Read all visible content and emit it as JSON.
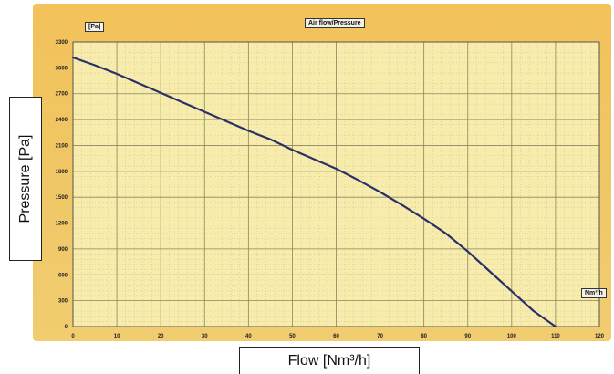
{
  "colors": {
    "frame": "#f1c563",
    "plot_bg": "#f7ecac",
    "grid": "#8c8560",
    "curve": "#2a3168"
  },
  "chart_data": {
    "type": "line",
    "title": "Air flow/Pressure",
    "xlabel": "Flow [Nm³/h]",
    "ylabel": "Pressure [Pa]",
    "x_unit_tag": "Nm³/h",
    "y_unit_tag": "[Pa]",
    "xlim": [
      0,
      120
    ],
    "ylim": [
      0,
      3300
    ],
    "x_ticks": [
      "0",
      "10",
      "20",
      "30",
      "40",
      "50",
      "60",
      "70",
      "80",
      "90",
      "100",
      "110",
      "120"
    ],
    "y_ticks": [
      "0",
      "300",
      "600",
      "900",
      "1200",
      "1500",
      "1800",
      "2100",
      "2400",
      "2700",
      "3000",
      "3300"
    ],
    "grid": true,
    "series": [
      {
        "values_x": [
          0,
          5,
          10,
          15,
          20,
          25,
          30,
          35,
          40,
          45,
          50,
          55,
          60,
          65,
          70,
          75,
          80,
          85,
          90,
          95,
          100,
          105,
          110
        ],
        "values_y": [
          3120,
          3030,
          2930,
          2820,
          2710,
          2600,
          2490,
          2380,
          2270,
          2170,
          2050,
          1940,
          1830,
          1700,
          1560,
          1410,
          1250,
          1080,
          870,
          640,
          410,
          180,
          0
        ]
      }
    ]
  }
}
